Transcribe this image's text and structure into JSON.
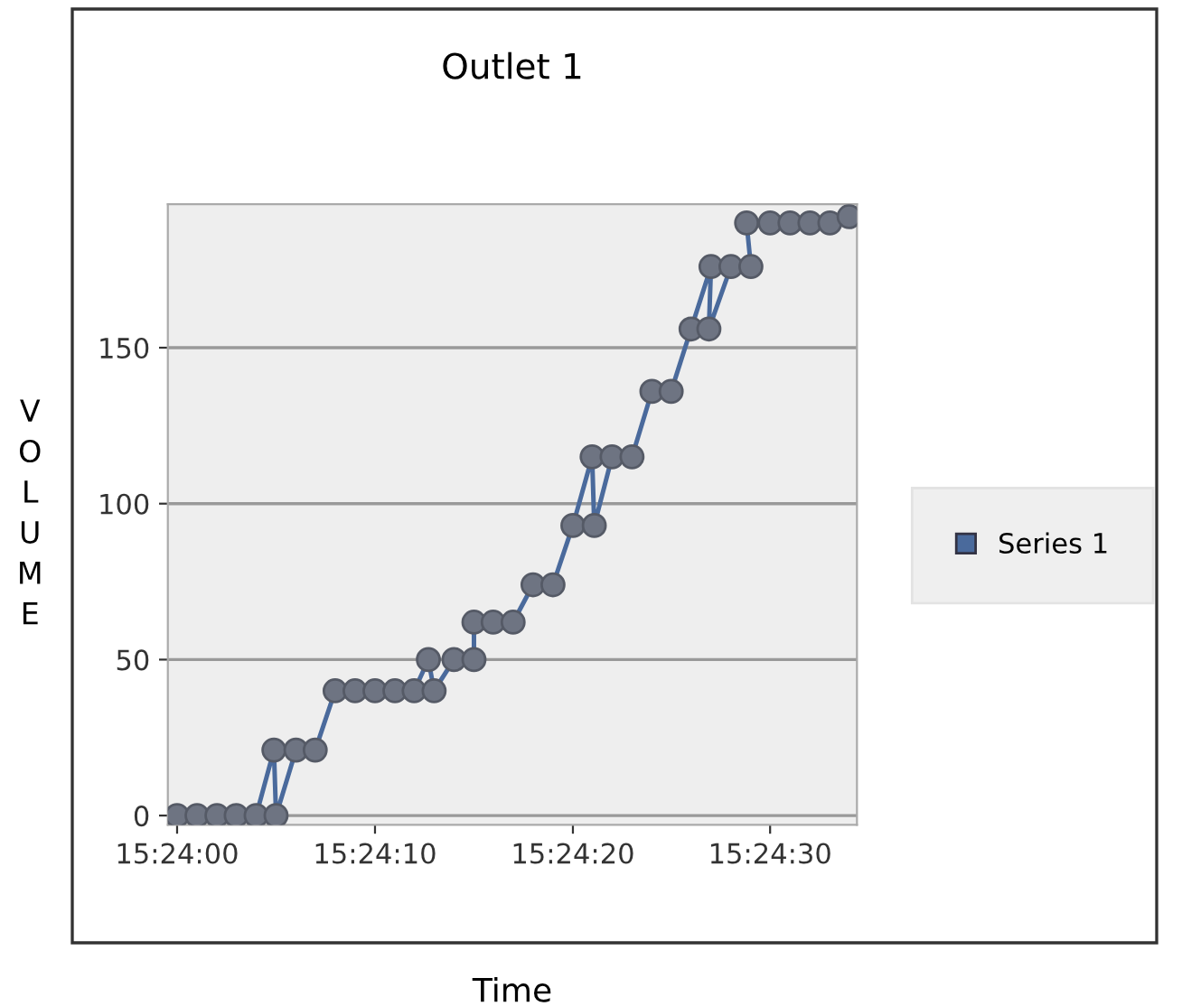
{
  "chart_data": {
    "type": "line",
    "title": "Outlet 1",
    "xlabel": "Time",
    "ylabel": "VOLUME",
    "series": [
      {
        "name": "Series 1",
        "color": "#4a6a9c",
        "x": [
          15.4,
          15.40028,
          15.40056,
          15.40083,
          15.40111,
          15.40136,
          15.40139,
          15.40167,
          15.40194,
          15.40222,
          15.4025,
          15.40278,
          15.40306,
          15.40333,
          15.40353,
          15.40361,
          15.40389,
          15.40417,
          15.40417,
          15.40444,
          15.40472,
          15.405,
          15.40528,
          15.40556,
          15.40583,
          15.40586,
          15.40611,
          15.40639,
          15.40667,
          15.40694,
          15.40722,
          15.4075,
          15.40747,
          15.40778,
          15.40806,
          15.408,
          15.40833,
          15.40861,
          15.40889,
          15.40917,
          15.40944
        ],
        "values": [
          0,
          0,
          0,
          0,
          0,
          21,
          0,
          21,
          21,
          40,
          40,
          40,
          40,
          40,
          50,
          40,
          50,
          50,
          62,
          62,
          62,
          74,
          74,
          93,
          115,
          93,
          115,
          115,
          136,
          136,
          156,
          176,
          156,
          176,
          176,
          190,
          190,
          190,
          190,
          190,
          192
        ]
      }
    ],
    "xlim": [
      15.39987,
      15.40955
    ],
    "ylim": [
      -3,
      196
    ],
    "xticks": [
      {
        "value": 15.4,
        "label": "15:24:00"
      },
      {
        "value": 15.40278,
        "label": "15:24:10"
      },
      {
        "value": 15.40556,
        "label": "15:24:20"
      },
      {
        "value": 15.40833,
        "label": "15:24:30"
      }
    ],
    "yticks": [
      0,
      50,
      100,
      150
    ],
    "grid": "y",
    "legend": "right",
    "marker": "circle",
    "line_style": "solid"
  }
}
